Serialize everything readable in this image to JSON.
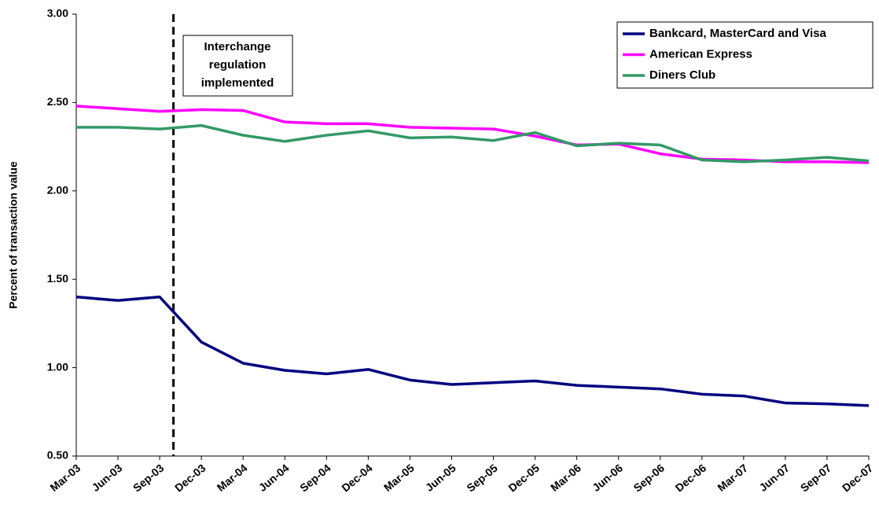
{
  "chart_data": {
    "type": "line",
    "y_label": "Percent of transaction value",
    "annotation": [
      "Interchange",
      "regulation",
      "implemented"
    ],
    "categories": [
      "Mar-03",
      "Jun-03",
      "Sep-03",
      "Dec-03",
      "Mar-04",
      "Jun-04",
      "Sep-04",
      "Dec-04",
      "Mar-05",
      "Jun-05",
      "Sep-05",
      "Dec-05",
      "Mar-06",
      "Jun-06",
      "Sep-06",
      "Dec-06",
      "Mar-07",
      "Jun-07",
      "Sep-07",
      "Dec-07"
    ],
    "series": [
      {
        "name": "Bankcard, MasterCard and Visa",
        "color": "#000080",
        "values": [
          1.4,
          1.38,
          1.4,
          1.145,
          1.025,
          0.985,
          0.965,
          0.99,
          0.93,
          0.905,
          0.915,
          0.925,
          0.9,
          0.89,
          0.88,
          0.85,
          0.84,
          0.8,
          0.795,
          0.785
        ]
      },
      {
        "name": "American Express",
        "color": "#ff00ff",
        "values": [
          2.48,
          2.465,
          2.45,
          2.46,
          2.455,
          2.39,
          2.38,
          2.38,
          2.36,
          2.355,
          2.35,
          2.31,
          2.26,
          2.265,
          2.21,
          2.18,
          2.175,
          2.165,
          2.165,
          2.16
        ]
      },
      {
        "name": "Diners Club",
        "color": "#339966",
        "values": [
          2.36,
          2.36,
          2.35,
          2.37,
          2.315,
          2.28,
          2.315,
          2.34,
          2.3,
          2.305,
          2.285,
          2.33,
          2.255,
          2.27,
          2.26,
          2.175,
          2.165,
          2.175,
          2.19,
          2.17
        ]
      }
    ],
    "ylim": [
      0.5,
      3.0
    ],
    "yticks": [
      {
        "value": 0.5,
        "label": "0.50"
      },
      {
        "value": 1,
        "label": "1.00"
      },
      {
        "value": 1.5,
        "label": "1.50"
      },
      {
        "value": 2,
        "label": "2.00"
      },
      {
        "value": 2.5,
        "label": "2.50"
      },
      {
        "value": 3,
        "label": "3.00"
      }
    ],
    "legend_position": "upper right"
  }
}
